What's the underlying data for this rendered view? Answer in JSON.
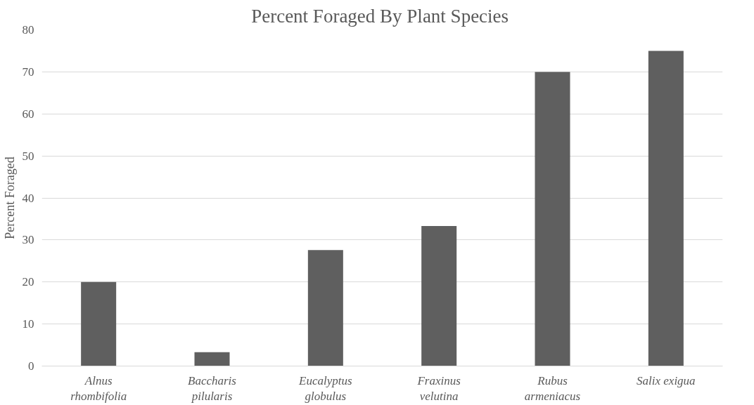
{
  "chart_data": {
    "type": "bar",
    "title": "Percent Foraged By  Plant Species",
    "ylabel": "Percent Foraged",
    "categories": [
      "Alnus rhombifolia",
      "Baccharis pilularis",
      "Eucalyptus globulus",
      "Fraxinus velutina",
      "Rubus armeniacus",
      "Salix exigua"
    ],
    "values": [
      20,
      3.3,
      27.6,
      33.3,
      70,
      75
    ],
    "color": "#5f5f5f",
    "ylim": [
      0,
      80
    ],
    "yticks": [
      0,
      10,
      20,
      30,
      40,
      50,
      60,
      70,
      80
    ],
    "grid": "y"
  }
}
